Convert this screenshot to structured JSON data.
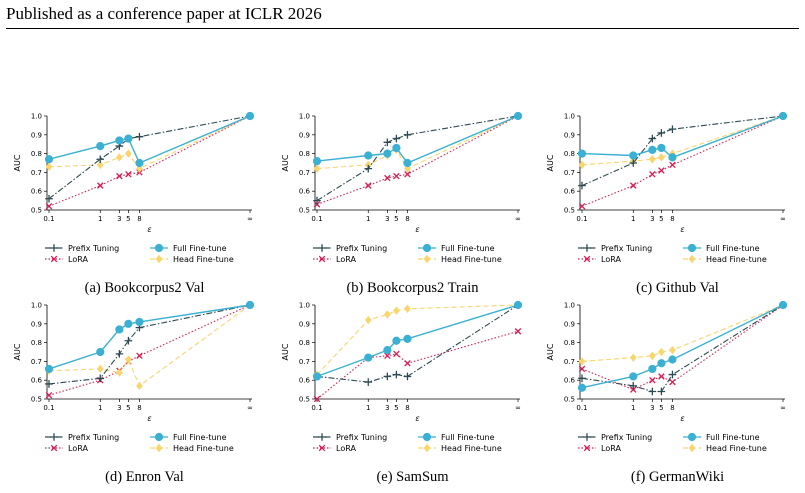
{
  "header": "Published as a conference paper at ICLR 2026",
  "legend_labels": [
    "Prefix Tuning",
    "Full Fine-tune",
    "LoRA",
    "Head Fine-tune"
  ],
  "styles": {
    "Prefix Tuning": {
      "color": "#2d4a52",
      "dash": "6,2,1.5,2",
      "marker": "plus"
    },
    "Full Fine-tune": {
      "color": "#3ab0d2",
      "dash": "",
      "marker": "circle"
    },
    "LoRA": {
      "color": "#d81b50",
      "dash": "1.5,2",
      "marker": "x"
    },
    "Head Fine-tune": {
      "color": "#f9d56e",
      "dash": "5,3",
      "marker": "diamond"
    }
  },
  "chart_data": [
    {
      "type": "line",
      "caption": "(a) Bookcorpus2 Val",
      "xlabel": "ε",
      "ylabel": "AUC",
      "ylim": [
        0.5,
        1.0
      ],
      "x": [
        "0.1",
        "1",
        "3",
        "5",
        "8",
        "∞"
      ],
      "series": [
        {
          "name": "Prefix Tuning",
          "values": [
            0.56,
            0.77,
            0.84,
            0.88,
            0.89,
            1.0
          ]
        },
        {
          "name": "Full Fine-tune",
          "values": [
            0.77,
            0.84,
            0.87,
            0.88,
            0.75,
            1.0
          ]
        },
        {
          "name": "LoRA",
          "values": [
            0.52,
            0.63,
            0.68,
            0.69,
            0.7,
            1.0
          ]
        },
        {
          "name": "Head Fine-tune",
          "values": [
            0.73,
            0.74,
            0.78,
            0.8,
            0.72,
            1.0
          ]
        }
      ]
    },
    {
      "type": "line",
      "caption": "(b) Bookcorpus2 Train",
      "xlabel": "ε",
      "ylabel": "AUC",
      "ylim": [
        0.5,
        1.0
      ],
      "x": [
        "0.1",
        "1",
        "3",
        "5",
        "8",
        "∞"
      ],
      "series": [
        {
          "name": "Prefix Tuning",
          "values": [
            0.55,
            0.72,
            0.86,
            0.88,
            0.9,
            1.0
          ]
        },
        {
          "name": "Full Fine-tune",
          "values": [
            0.76,
            0.79,
            0.8,
            0.83,
            0.75,
            1.0
          ]
        },
        {
          "name": "LoRA",
          "values": [
            0.53,
            0.63,
            0.67,
            0.68,
            0.69,
            1.0
          ]
        },
        {
          "name": "Head Fine-tune",
          "values": [
            0.72,
            0.74,
            0.79,
            0.82,
            0.72,
            1.0
          ]
        }
      ]
    },
    {
      "type": "line",
      "caption": "(c) Github Val",
      "xlabel": "ε",
      "ylabel": "AUC",
      "ylim": [
        0.5,
        1.0
      ],
      "x": [
        "0.1",
        "1",
        "3",
        "5",
        "8",
        "∞"
      ],
      "series": [
        {
          "name": "Prefix Tuning",
          "values": [
            0.63,
            0.75,
            0.88,
            0.91,
            0.93,
            1.0
          ]
        },
        {
          "name": "Full Fine-tune",
          "values": [
            0.8,
            0.79,
            0.82,
            0.83,
            0.78,
            1.0
          ]
        },
        {
          "name": "LoRA",
          "values": [
            0.52,
            0.63,
            0.69,
            0.71,
            0.74,
            1.0
          ]
        },
        {
          "name": "Head Fine-tune",
          "values": [
            0.74,
            0.76,
            0.77,
            0.78,
            0.8,
            1.0
          ]
        }
      ]
    },
    {
      "type": "line",
      "caption": "(d) Enron Val",
      "xlabel": "ε",
      "ylabel": "AUC",
      "ylim": [
        0.5,
        1.0
      ],
      "x": [
        "0.1",
        "1",
        "3",
        "5",
        "8",
        "∞"
      ],
      "series": [
        {
          "name": "Prefix Tuning",
          "values": [
            0.58,
            0.61,
            0.74,
            0.81,
            0.88,
            1.0
          ]
        },
        {
          "name": "Full Fine-tune",
          "values": [
            0.66,
            0.75,
            0.87,
            0.9,
            0.91,
            1.0
          ]
        },
        {
          "name": "LoRA",
          "values": [
            0.52,
            0.6,
            0.65,
            0.7,
            0.73,
            1.0
          ]
        },
        {
          "name": "Head Fine-tune",
          "values": [
            0.65,
            0.66,
            0.64,
            0.71,
            0.57,
            1.0
          ]
        }
      ]
    },
    {
      "type": "line",
      "caption": "(e) SamSum",
      "xlabel": "ε",
      "ylabel": "AUC",
      "ylim": [
        0.5,
        1.0
      ],
      "x": [
        "0.1",
        "1",
        "3",
        "5",
        "8",
        "∞"
      ],
      "series": [
        {
          "name": "Prefix Tuning",
          "values": [
            0.62,
            0.59,
            0.62,
            0.63,
            0.62,
            1.0
          ]
        },
        {
          "name": "Full Fine-tune",
          "values": [
            0.62,
            0.72,
            0.76,
            0.81,
            0.82,
            1.0
          ]
        },
        {
          "name": "LoRA",
          "values": [
            0.5,
            0.72,
            0.73,
            0.74,
            0.69,
            0.86
          ]
        },
        {
          "name": "Head Fine-tune",
          "values": [
            0.63,
            0.92,
            0.95,
            0.97,
            0.98,
            1.0
          ]
        }
      ]
    },
    {
      "type": "line",
      "caption": "(f) GermanWiki",
      "xlabel": "ε",
      "ylabel": "AUC",
      "ylim": [
        0.5,
        1.0
      ],
      "x": [
        "0.1",
        "1",
        "3",
        "5",
        "8",
        "∞"
      ],
      "series": [
        {
          "name": "Prefix Tuning",
          "values": [
            0.61,
            0.57,
            0.54,
            0.54,
            0.63,
            1.0
          ]
        },
        {
          "name": "Full Fine-tune",
          "values": [
            0.56,
            0.62,
            0.66,
            0.69,
            0.71,
            1.0
          ]
        },
        {
          "name": "LoRA",
          "values": [
            0.66,
            0.55,
            0.6,
            0.62,
            0.59,
            1.0
          ]
        },
        {
          "name": "Head Fine-tune",
          "values": [
            0.7,
            0.72,
            0.73,
            0.75,
            0.76,
            1.0
          ]
        }
      ]
    }
  ]
}
